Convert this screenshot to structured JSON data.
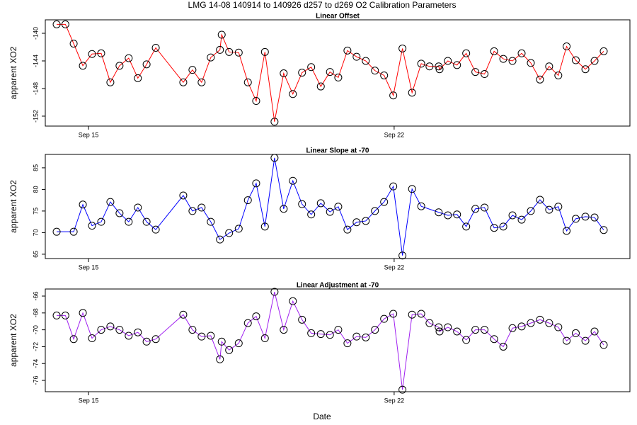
{
  "title": "LMG  14-08    140914 to 140926    d257 to d269   O2 Calibration Parameters",
  "x_label": "Date",
  "chart_data": [
    {
      "type": "line",
      "title": "Linear Offset",
      "y_label": "apparent XO2",
      "color": "#ff0000",
      "x": [
        14.27,
        14.47,
        14.66,
        14.87,
        15.08,
        15.29,
        15.5,
        15.71,
        15.92,
        16.13,
        16.33,
        16.54,
        17.17,
        17.38,
        17.59,
        17.8,
        18.01,
        18.05,
        18.22,
        18.44,
        18.65,
        18.84,
        19.04,
        19.26,
        19.47,
        19.68,
        19.89,
        20.1,
        20.32,
        20.53,
        20.72,
        20.93,
        21.14,
        21.35,
        21.56,
        21.77,
        21.98,
        22.19,
        22.41,
        22.62,
        22.81,
        23.02,
        23.04,
        23.23,
        23.44,
        23.65,
        23.86,
        24.07,
        24.29,
        24.5,
        24.71,
        24.92,
        25.13,
        25.34,
        25.55,
        25.76,
        25.95,
        26.16,
        26.38,
        26.59,
        26.8
      ],
      "values": [
        -138.7,
        -138.7,
        -141.5,
        -144.7,
        -143.0,
        -142.9,
        -147.1,
        -144.7,
        -143.6,
        -146.5,
        -144.5,
        -142.1,
        -147.1,
        -145.3,
        -147.1,
        -143.5,
        -142.4,
        -140.2,
        -142.7,
        -142.8,
        -147.1,
        -149.8,
        -142.7,
        -152.8,
        -145.8,
        -148.8,
        -145.7,
        -144.9,
        -147.7,
        -145.6,
        -146.4,
        -142.5,
        -143.4,
        -144.0,
        -145.4,
        -146.1,
        -149.0,
        -142.2,
        -148.6,
        -144.4,
        -144.8,
        -144.8,
        -145.2,
        -144.0,
        -144.6,
        -142.9,
        -145.6,
        -145.9,
        -142.6,
        -143.7,
        -144.0,
        -142.9,
        -144.3,
        -146.7,
        -144.8,
        -146.1,
        -141.9,
        -143.9,
        -145.2,
        -144.0,
        -142.6
      ],
      "xlim": [
        14.01,
        27.4
      ],
      "xticks": [
        {
          "value": 15,
          "label": "Sep 15"
        },
        {
          "value": 22,
          "label": "Sep 22"
        }
      ],
      "ylim": [
        -153.44,
        -138.05
      ],
      "yticks": [
        -140,
        -144,
        -148,
        -152
      ]
    },
    {
      "type": "line",
      "title": "Linear Slope at -70",
      "y_label": "apparent XO2",
      "color": "#0000ff",
      "x": [
        14.27,
        14.66,
        14.87,
        15.08,
        15.29,
        15.5,
        15.71,
        15.92,
        16.13,
        16.33,
        16.54,
        17.17,
        17.38,
        17.59,
        17.8,
        18.01,
        18.22,
        18.44,
        18.65,
        18.84,
        19.04,
        19.26,
        19.47,
        19.68,
        19.89,
        20.1,
        20.32,
        20.53,
        20.72,
        20.93,
        21.14,
        21.35,
        21.56,
        21.77,
        21.98,
        22.19,
        22.41,
        22.62,
        23.02,
        23.23,
        23.44,
        23.65,
        23.86,
        24.07,
        24.29,
        24.5,
        24.71,
        24.92,
        25.13,
        25.34,
        25.55,
        25.76,
        25.95,
        26.16,
        26.38,
        26.59,
        26.8
      ],
      "values": [
        70.2,
        70.2,
        76.5,
        71.6,
        72.5,
        77.1,
        74.5,
        72.5,
        75.8,
        72.5,
        70.7,
        78.6,
        75.0,
        75.8,
        72.5,
        68.4,
        69.9,
        70.9,
        77.5,
        81.4,
        71.4,
        87.3,
        75.5,
        82.0,
        76.6,
        74.2,
        76.8,
        74.8,
        76.0,
        70.7,
        72.4,
        72.7,
        75.0,
        77.1,
        80.7,
        64.7,
        80.1,
        76.1,
        74.7,
        74.0,
        74.2,
        71.4,
        75.5,
        75.8,
        71.1,
        71.4,
        74.0,
        73.0,
        75.0,
        77.6,
        75.3,
        76.0,
        70.4,
        73.2,
        73.7,
        73.5,
        70.6
      ],
      "xlim": [
        14.01,
        27.4
      ],
      "xticks": [
        {
          "value": 15,
          "label": "Sep 15"
        },
        {
          "value": 22,
          "label": "Sep 22"
        }
      ],
      "ylim": [
        64.0,
        88.1
      ],
      "yticks": [
        65,
        70,
        75,
        80,
        85
      ]
    },
    {
      "type": "line",
      "title": "Linear Adjustment at -70",
      "y_label": "apparent XO2",
      "color": "#a020f0",
      "x": [
        14.27,
        14.47,
        14.66,
        14.87,
        15.08,
        15.29,
        15.5,
        15.71,
        15.92,
        16.13,
        16.33,
        16.54,
        17.17,
        17.38,
        17.59,
        17.8,
        18.01,
        18.05,
        18.22,
        18.44,
        18.65,
        18.84,
        19.04,
        19.26,
        19.47,
        19.68,
        19.89,
        20.1,
        20.32,
        20.53,
        20.72,
        20.93,
        21.14,
        21.35,
        21.56,
        21.77,
        21.98,
        22.19,
        22.41,
        22.62,
        22.81,
        23.02,
        23.04,
        23.23,
        23.44,
        23.65,
        23.86,
        24.07,
        24.29,
        24.5,
        24.71,
        24.92,
        25.13,
        25.34,
        25.55,
        25.76,
        25.95,
        26.16,
        26.38,
        26.59,
        26.8
      ],
      "values": [
        -68.3,
        -68.3,
        -71.1,
        -68.0,
        -71.0,
        -70.0,
        -69.6,
        -70.0,
        -70.7,
        -70.3,
        -71.4,
        -71.1,
        -68.2,
        -70.0,
        -70.8,
        -70.7,
        -73.5,
        -71.4,
        -72.4,
        -71.6,
        -69.2,
        -68.4,
        -71.0,
        -65.5,
        -70.0,
        -66.6,
        -68.8,
        -70.4,
        -70.5,
        -70.6,
        -70.0,
        -71.6,
        -70.8,
        -70.9,
        -70.0,
        -68.7,
        -68.1,
        -77.1,
        -68.2,
        -68.1,
        -69.2,
        -69.7,
        -70.2,
        -69.7,
        -70.2,
        -71.2,
        -70.0,
        -70.0,
        -71.1,
        -72.0,
        -69.8,
        -69.6,
        -69.2,
        -68.8,
        -69.2,
        -69.7,
        -71.3,
        -70.4,
        -71.3,
        -70.2,
        -71.8
      ],
      "xlim": [
        14.01,
        27.4
      ],
      "xticks": [
        {
          "value": 15,
          "label": "Sep 15"
        },
        {
          "value": 22,
          "label": "Sep 22"
        }
      ],
      "ylim": [
        -77.34,
        -65.16
      ],
      "yticks": [
        -76,
        -74,
        -72,
        -70,
        -68,
        -66
      ]
    }
  ]
}
